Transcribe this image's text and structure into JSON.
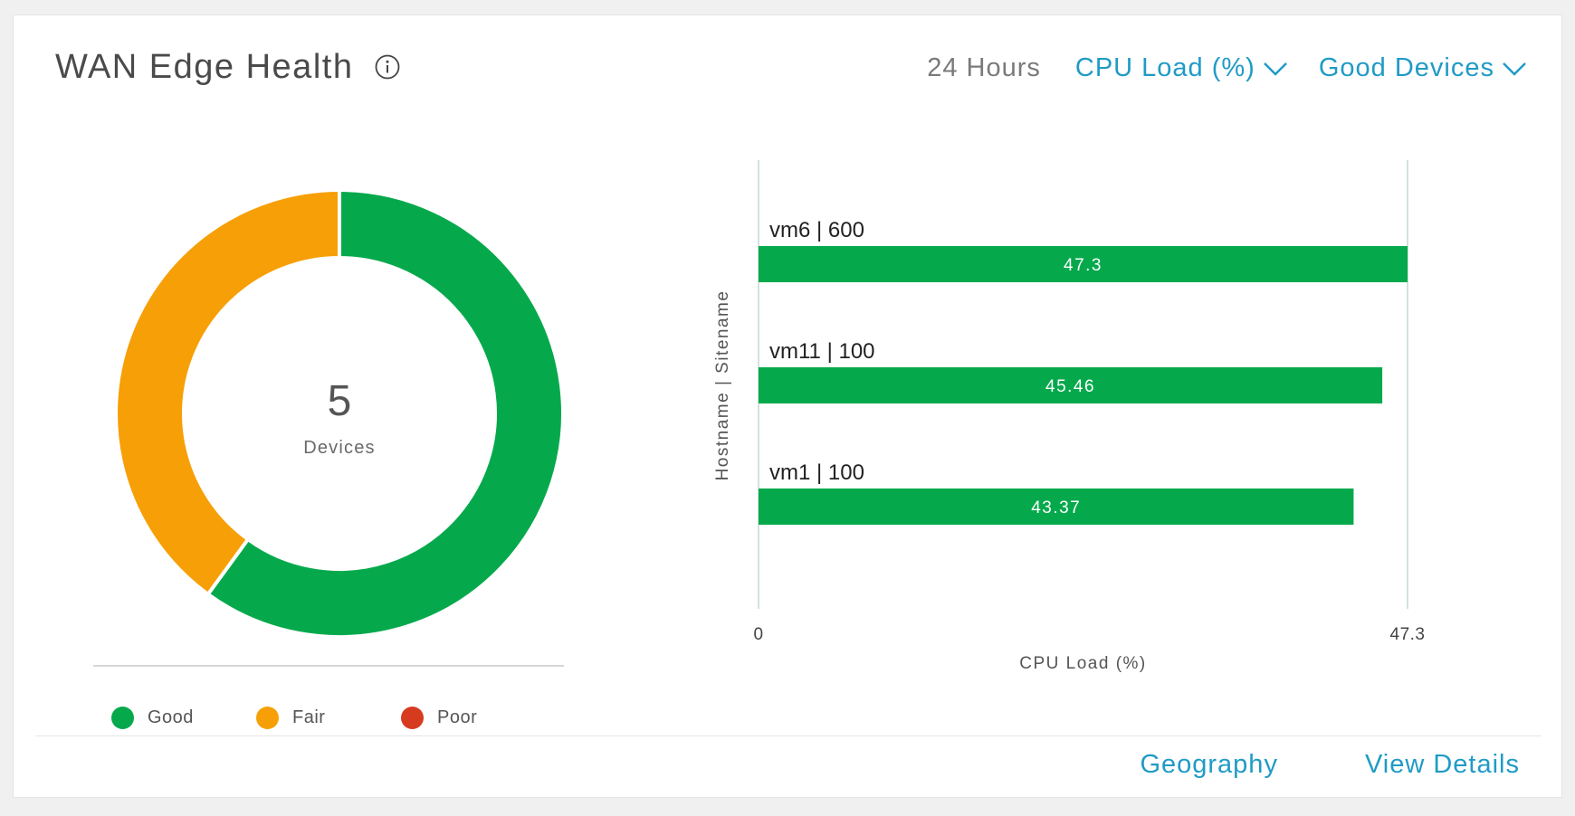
{
  "header": {
    "title": "WAN Edge Health",
    "time_range": "24 Hours",
    "metric_dropdown": "CPU Load (%)",
    "filter_dropdown": "Good Devices"
  },
  "donut": {
    "count": "5",
    "label": "Devices",
    "segments": [
      {
        "name": "Good",
        "value": 3,
        "color": "#05a94c"
      },
      {
        "name": "Fair",
        "value": 2,
        "color": "#f79f06"
      },
      {
        "name": "Poor",
        "value": 0,
        "color": "#d63b20"
      }
    ]
  },
  "legend": [
    {
      "label": "Good",
      "color": "#05a94c"
    },
    {
      "label": "Fair",
      "color": "#f79f06"
    },
    {
      "label": "Poor",
      "color": "#d63b20"
    }
  ],
  "chart_data": {
    "type": "bar",
    "orientation": "horizontal",
    "categories": [
      "vm6 | 600",
      "vm11 | 100",
      "vm1 | 100"
    ],
    "values": [
      47.3,
      45.46,
      43.37
    ],
    "value_labels": [
      "47.3",
      "45.46",
      "43.37"
    ],
    "xlabel": "CPU Load (%)",
    "ylabel": "Hostname | Sitename",
    "xlim": [
      0,
      47.3
    ],
    "x_ticks": [
      "0",
      "47.3"
    ],
    "bar_color": "#05a94c"
  },
  "footer": {
    "geography": "Geography",
    "view_details": "View Details"
  }
}
